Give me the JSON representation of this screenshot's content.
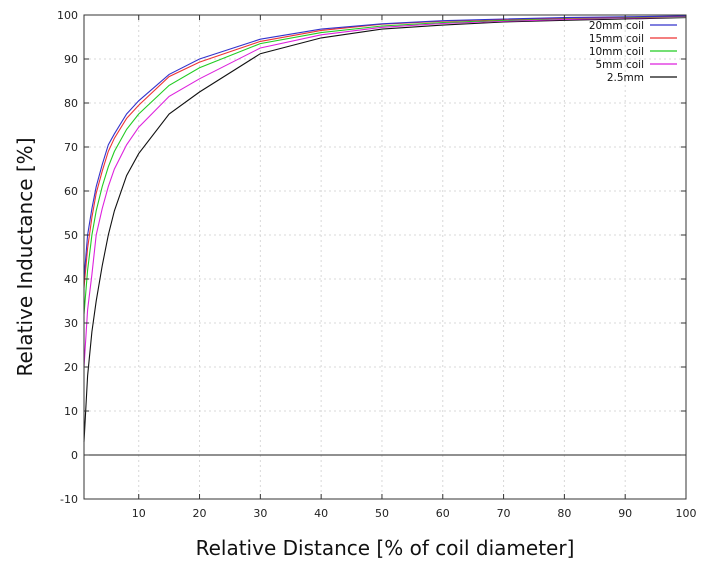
{
  "chart_data": {
    "type": "line",
    "title": "",
    "xlabel": "Relative Distance [% of coil diameter]",
    "ylabel": "Relative Inductance [%]",
    "xlim": [
      1,
      100
    ],
    "ylim": [
      -10,
      100
    ],
    "xticks": [
      10,
      20,
      30,
      40,
      50,
      60,
      70,
      80,
      90,
      100
    ],
    "yticks": [
      -10,
      0,
      10,
      20,
      30,
      40,
      50,
      60,
      70,
      80,
      90,
      100
    ],
    "grid": true,
    "zero_line": true,
    "legend_placement": "top-right",
    "x": [
      1,
      1.6,
      2.3,
      3,
      4,
      5,
      6,
      8,
      10,
      15,
      20,
      30,
      40,
      50,
      60,
      70,
      80,
      90,
      100
    ],
    "series": [
      {
        "name": "20mm coil",
        "color": "#3333cc",
        "values": [
          40,
          50,
          56,
          61,
          66,
          70.5,
          73,
          77.5,
          80.5,
          86.5,
          90,
          94.5,
          96.8,
          98,
          98.7,
          99.1,
          99.4,
          99.6,
          99.8
        ]
      },
      {
        "name": "15mm coil",
        "color": "#ee3333",
        "values": [
          38,
          47,
          54,
          59.5,
          64.5,
          69,
          72,
          76.5,
          79.5,
          86,
          89.3,
          94,
          96.5,
          97.9,
          98.6,
          99,
          99.3,
          99.5,
          99.7
        ]
      },
      {
        "name": "10mm coil",
        "color": "#22cc22",
        "values": [
          32,
          42,
          50,
          55.5,
          61,
          65.5,
          69,
          74,
          77.5,
          84,
          88,
          93.5,
          96,
          97.5,
          98.3,
          98.8,
          99.2,
          99.4,
          99.6
        ]
      },
      {
        "name": "5mm coil",
        "color": "#dd22dd",
        "values": [
          20,
          33,
          41,
          50,
          56,
          61,
          65,
          70.5,
          74.5,
          81.5,
          85.5,
          92.5,
          95.5,
          97.2,
          98.1,
          98.6,
          99,
          99.3,
          99.5
        ]
      },
      {
        "name": "2.5mm",
        "color": "#111111",
        "values": [
          3,
          18,
          28,
          35,
          43,
          50,
          55.5,
          63.5,
          68.5,
          77.5,
          82.5,
          91.2,
          94.8,
          96.8,
          97.7,
          98.4,
          98.8,
          99.1,
          99.4
        ]
      }
    ]
  }
}
